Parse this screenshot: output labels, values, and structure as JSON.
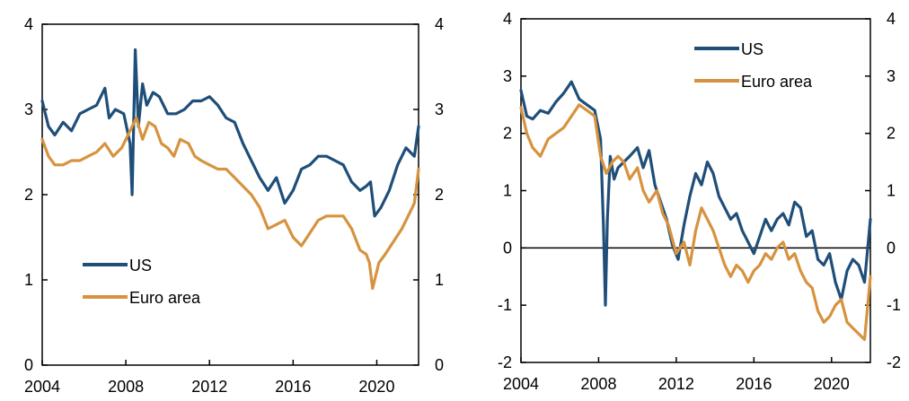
{
  "chart_data": [
    {
      "type": "line",
      "xlabel": "",
      "ylabel": "",
      "xlim": [
        2004,
        2022
      ],
      "ylim": [
        0,
        4
      ],
      "xticks": [
        "2004",
        "2008",
        "2012",
        "2016",
        "2020"
      ],
      "yticks_left": [
        "0",
        "1",
        "2",
        "3",
        "4"
      ],
      "yticks_right": [
        "0",
        "1",
        "2",
        "3",
        "4"
      ],
      "legend_position": "lower-left",
      "zero_line": false,
      "series": [
        {
          "name": "US",
          "color": "#1f4e79",
          "x": [
            2004.0,
            2004.3,
            2004.6,
            2005.0,
            2005.4,
            2005.8,
            2006.2,
            2006.6,
            2007.0,
            2007.2,
            2007.5,
            2007.9,
            2008.2,
            2008.3,
            2008.45,
            2008.6,
            2008.8,
            2009.0,
            2009.3,
            2009.6,
            2010.0,
            2010.4,
            2010.8,
            2011.2,
            2011.6,
            2012.0,
            2012.4,
            2012.8,
            2013.2,
            2013.6,
            2014.0,
            2014.4,
            2014.8,
            2015.2,
            2015.6,
            2016.0,
            2016.4,
            2016.8,
            2017.2,
            2017.6,
            2018.0,
            2018.4,
            2018.8,
            2019.2,
            2019.5,
            2019.7,
            2019.9,
            2020.2,
            2020.6,
            2021.0,
            2021.4,
            2021.8,
            2022.0
          ],
          "y": [
            3.1,
            2.8,
            2.7,
            2.85,
            2.75,
            2.95,
            3.0,
            3.05,
            3.25,
            2.9,
            3.0,
            2.95,
            2.6,
            2.0,
            3.7,
            2.8,
            3.3,
            3.05,
            3.2,
            3.15,
            2.95,
            2.95,
            3.0,
            3.1,
            3.1,
            3.15,
            3.05,
            2.9,
            2.85,
            2.6,
            2.4,
            2.2,
            2.05,
            2.2,
            1.9,
            2.05,
            2.3,
            2.35,
            2.45,
            2.45,
            2.4,
            2.35,
            2.15,
            2.05,
            2.1,
            2.15,
            1.75,
            1.85,
            2.05,
            2.35,
            2.55,
            2.45,
            2.8
          ]
        },
        {
          "name": "Euro area",
          "color": "#d6933f",
          "x": [
            2004.0,
            2004.3,
            2004.6,
            2005.0,
            2005.4,
            2005.8,
            2006.2,
            2006.6,
            2007.0,
            2007.4,
            2007.8,
            2008.2,
            2008.5,
            2008.8,
            2009.1,
            2009.4,
            2009.7,
            2010.0,
            2010.3,
            2010.6,
            2011.0,
            2011.3,
            2011.6,
            2012.0,
            2012.4,
            2012.8,
            2013.2,
            2013.6,
            2014.0,
            2014.4,
            2014.8,
            2015.2,
            2015.6,
            2016.0,
            2016.4,
            2016.8,
            2017.2,
            2017.6,
            2018.0,
            2018.4,
            2018.8,
            2019.2,
            2019.5,
            2019.65,
            2019.8,
            2020.1,
            2020.4,
            2020.8,
            2021.2,
            2021.5,
            2021.8,
            2022.0
          ],
          "y": [
            2.65,
            2.45,
            2.35,
            2.35,
            2.4,
            2.4,
            2.45,
            2.5,
            2.6,
            2.45,
            2.55,
            2.75,
            2.9,
            2.65,
            2.85,
            2.8,
            2.6,
            2.55,
            2.45,
            2.65,
            2.6,
            2.45,
            2.4,
            2.35,
            2.3,
            2.3,
            2.2,
            2.1,
            2.0,
            1.85,
            1.6,
            1.65,
            1.7,
            1.5,
            1.4,
            1.55,
            1.7,
            1.75,
            1.75,
            1.75,
            1.6,
            1.35,
            1.3,
            1.2,
            0.9,
            1.2,
            1.3,
            1.45,
            1.6,
            1.75,
            1.9,
            2.3
          ]
        }
      ]
    },
    {
      "type": "line",
      "xlabel": "",
      "ylabel": "",
      "xlim": [
        2004,
        2022
      ],
      "ylim": [
        -2,
        4
      ],
      "xticks": [
        "2004",
        "2008",
        "2012",
        "2016",
        "2020"
      ],
      "yticks_left": [
        "-2",
        "-1",
        "0",
        "1",
        "2",
        "3",
        "4"
      ],
      "yticks_right": [
        "-2",
        "-1",
        "0",
        "1",
        "2",
        "3",
        "4"
      ],
      "legend_position": "top-right",
      "zero_line": true,
      "series": [
        {
          "name": "US",
          "color": "#1f4e79",
          "x": [
            2004.0,
            2004.3,
            2004.6,
            2005.0,
            2005.4,
            2005.8,
            2006.2,
            2006.6,
            2007.0,
            2007.4,
            2007.8,
            2008.1,
            2008.25,
            2008.35,
            2008.45,
            2008.6,
            2008.8,
            2009.0,
            2009.3,
            2009.6,
            2010.0,
            2010.3,
            2010.6,
            2010.9,
            2011.2,
            2011.5,
            2011.8,
            2012.1,
            2012.4,
            2012.7,
            2013.0,
            2013.3,
            2013.6,
            2013.9,
            2014.2,
            2014.5,
            2014.8,
            2015.1,
            2015.4,
            2015.7,
            2016.0,
            2016.3,
            2016.6,
            2016.9,
            2017.2,
            2017.5,
            2017.8,
            2018.1,
            2018.4,
            2018.7,
            2019.0,
            2019.3,
            2019.6,
            2019.9,
            2020.2,
            2020.5,
            2020.8,
            2021.1,
            2021.4,
            2021.7,
            2022.0
          ],
          "y": [
            2.75,
            2.3,
            2.25,
            2.4,
            2.35,
            2.55,
            2.7,
            2.9,
            2.6,
            2.5,
            2.4,
            1.9,
            0.4,
            -1.0,
            0.5,
            1.6,
            1.2,
            1.4,
            1.5,
            1.6,
            1.75,
            1.4,
            1.7,
            1.1,
            0.8,
            0.5,
            0.05,
            -0.2,
            0.4,
            0.9,
            1.3,
            1.1,
            1.5,
            1.3,
            0.9,
            0.7,
            0.5,
            0.6,
            0.3,
            0.1,
            -0.1,
            0.2,
            0.5,
            0.3,
            0.5,
            0.6,
            0.4,
            0.8,
            0.7,
            0.2,
            0.3,
            -0.2,
            -0.3,
            -0.1,
            -0.6,
            -0.9,
            -0.4,
            -0.2,
            -0.3,
            -0.6,
            0.5
          ]
        },
        {
          "name": "Euro area",
          "color": "#d6933f",
          "x": [
            2004.0,
            2004.3,
            2004.6,
            2005.0,
            2005.4,
            2005.8,
            2006.2,
            2006.6,
            2007.0,
            2007.4,
            2007.8,
            2008.1,
            2008.4,
            2008.7,
            2009.0,
            2009.3,
            2009.6,
            2010.0,
            2010.3,
            2010.6,
            2011.0,
            2011.3,
            2011.6,
            2012.0,
            2012.4,
            2012.7,
            2013.0,
            2013.3,
            2013.6,
            2013.9,
            2014.2,
            2014.5,
            2014.8,
            2015.1,
            2015.4,
            2015.7,
            2016.0,
            2016.3,
            2016.6,
            2016.9,
            2017.2,
            2017.5,
            2017.8,
            2018.1,
            2018.4,
            2018.7,
            2019.0,
            2019.3,
            2019.6,
            2019.9,
            2020.2,
            2020.5,
            2020.8,
            2021.1,
            2021.4,
            2021.7,
            2022.0
          ],
          "y": [
            2.45,
            2.0,
            1.75,
            1.6,
            1.9,
            2.0,
            2.1,
            2.3,
            2.5,
            2.4,
            2.3,
            1.6,
            1.3,
            1.5,
            1.6,
            1.5,
            1.2,
            1.4,
            1.0,
            0.8,
            1.0,
            0.6,
            0.4,
            -0.1,
            0.1,
            -0.3,
            0.3,
            0.7,
            0.5,
            0.3,
            0.0,
            -0.3,
            -0.5,
            -0.3,
            -0.4,
            -0.6,
            -0.4,
            -0.3,
            -0.1,
            -0.2,
            0.0,
            0.1,
            -0.2,
            -0.1,
            -0.4,
            -0.6,
            -0.7,
            -1.1,
            -1.3,
            -1.2,
            -1.0,
            -0.9,
            -1.3,
            -1.4,
            -1.5,
            -1.6,
            -0.5
          ]
        }
      ]
    }
  ]
}
